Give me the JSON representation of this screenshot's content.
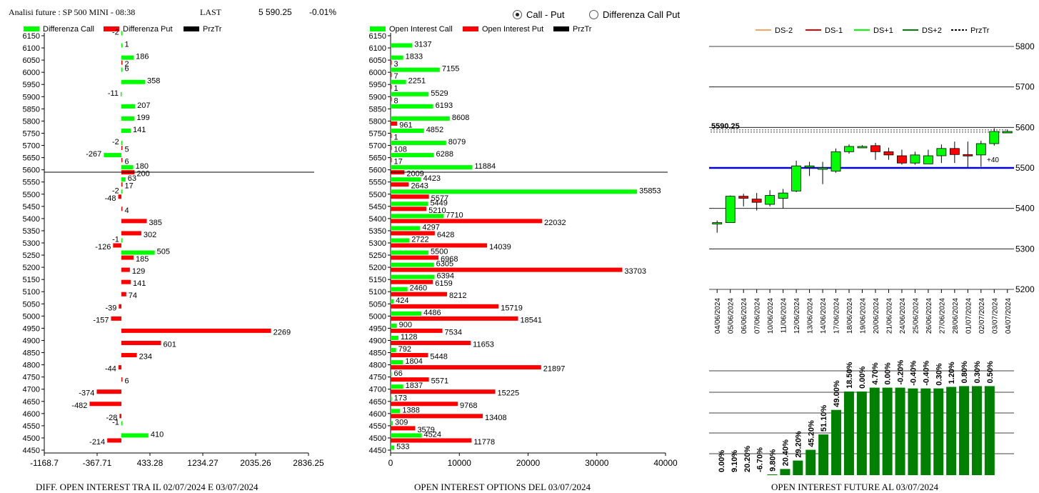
{
  "header": {
    "title": "Analisi future : SP 500 MINI - 08:38",
    "last_label": "LAST",
    "last_value": "5 590.25",
    "change": "-0.01%"
  },
  "radios": {
    "call_put": "Call - Put",
    "diff_call_put": "Differenza Call Put",
    "selected": "call_put"
  },
  "footers": {
    "left": "DIFF. OPEN INTEREST TRA IL 02/07/2024 E 03/07/2024",
    "middle": "OPEN INTEREST OPTIONS DEL 03/07/2024",
    "right": "OPEN INTEREST FUTURE AL 03/07/2024"
  },
  "colors": {
    "green": "#00ff00",
    "red": "#ff0000",
    "black": "#000000",
    "blue": "#0000cc",
    "darkgreen": "#008000",
    "orange": "#f4a460",
    "darkred": "#dd0000"
  },
  "chart_data": [
    {
      "id": "diff",
      "type": "bar",
      "orientation": "horizontal",
      "legend": [
        "Differenza Call",
        "Differenza Put",
        "PrzTr"
      ],
      "strikes": [
        6150,
        6100,
        6050,
        6000,
        5950,
        5900,
        5850,
        5800,
        5750,
        5700,
        5650,
        5600,
        5550,
        5500,
        5450,
        5400,
        5350,
        5300,
        5250,
        5200,
        5150,
        5100,
        5050,
        5000,
        4950,
        4900,
        4850,
        4800,
        4750,
        4700,
        4650,
        4600,
        4550,
        4500,
        4450
      ],
      "call": [
        -2,
        1,
        186,
        6,
        358,
        -11,
        207,
        199,
        141,
        -2,
        -267,
        180,
        63,
        -2,
        null,
        null,
        null,
        -1,
        505,
        null,
        null,
        null,
        null,
        null,
        null,
        null,
        null,
        null,
        null,
        null,
        null,
        null,
        -1,
        410,
        null
      ],
      "put": [
        null,
        null,
        2,
        null,
        null,
        null,
        null,
        null,
        null,
        5,
        6,
        200,
        17,
        -48,
        4,
        385,
        302,
        -126,
        185,
        129,
        141,
        74,
        -39,
        -157,
        2269,
        601,
        234,
        -44,
        6,
        -374,
        -482,
        -28,
        null,
        -214,
        null
      ],
      "call_row_offset": [
        0,
        0,
        0,
        0,
        0,
        0,
        0,
        0,
        0,
        0,
        0,
        0,
        0,
        0,
        0,
        0,
        0,
        0,
        0,
        0,
        0,
        0,
        0,
        0,
        0,
        0,
        0,
        0,
        0,
        0,
        0,
        0,
        0,
        0,
        0
      ],
      "xticks": [
        "-1168.7",
        "-367.71",
        "433.28",
        "1234.27",
        "2035.26",
        "2836.25"
      ],
      "xlim": [
        -1168.7,
        2836.25
      ],
      "price_line": 5590.25
    },
    {
      "id": "oi",
      "type": "bar",
      "orientation": "horizontal",
      "legend": [
        "Open Interest Call",
        "Open Interest Put",
        "PrzTr"
      ],
      "strikes": [
        6150,
        6100,
        6050,
        6000,
        5950,
        5900,
        5850,
        5800,
        5750,
        5700,
        5650,
        5600,
        5550,
        5500,
        5450,
        5400,
        5350,
        5300,
        5250,
        5200,
        5150,
        5100,
        5050,
        5000,
        4950,
        4900,
        4850,
        4800,
        4750,
        4700,
        4650,
        4600,
        4550,
        4500,
        4450
      ],
      "call": [
        null,
        3137,
        1833,
        7155,
        2251,
        5529,
        6193,
        8608,
        4852,
        8079,
        6288,
        11884,
        4423,
        35853,
        5449,
        7710,
        4297,
        2722,
        5500,
        6305,
        6394,
        2460,
        424,
        4486,
        900,
        1128,
        792,
        1804,
        66,
        1837,
        173,
        1388,
        309,
        4524,
        533
      ],
      "put": [
        null,
        null,
        3,
        7,
        1,
        8,
        null,
        961,
        1,
        108,
        17,
        2009,
        2643,
        5577,
        5210,
        22032,
        6428,
        14039,
        6968,
        33703,
        6159,
        8212,
        15719,
        18541,
        7534,
        11653,
        5448,
        21897,
        5571,
        15225,
        9768,
        13408,
        3579,
        11778,
        null
      ],
      "xticks": [
        "0",
        "10000",
        "20000",
        "30000",
        "40000"
      ],
      "xlim": [
        0,
        40000
      ],
      "price_line": 5590.25
    },
    {
      "id": "candles",
      "type": "candlestick",
      "legend": [
        "DS-2",
        "DS-1",
        "DS+1",
        "DS+2",
        "PrzTr"
      ],
      "dates": [
        "04/06/2024",
        "05/06/2024",
        "06/06/2024",
        "07/06/2024",
        "10/06/2024",
        "11/06/2024",
        "12/06/2024",
        "13/06/2024",
        "14/06/2024",
        "17/06/2024",
        "18/06/2024",
        "19/06/2024",
        "20/06/2024",
        "21/06/2024",
        "24/06/2024",
        "25/06/2024",
        "26/06/2024",
        "27/06/2024",
        "28/06/2024",
        "01/07/2024",
        "02/07/2024",
        "03/07/2024",
        "04/07/2024"
      ],
      "open": [
        5362,
        5365,
        5430,
        5423,
        5410,
        5425,
        5443,
        5505,
        5500,
        5492,
        5540,
        5553,
        5555,
        5540,
        5530,
        5512,
        5510,
        5530,
        5548,
        5533,
        5532,
        5560,
        5590
      ],
      "close": [
        5365,
        5430,
        5425,
        5415,
        5432,
        5438,
        5505,
        5505,
        5500,
        5540,
        5553,
        5553,
        5540,
        5532,
        5512,
        5532,
        5530,
        5548,
        5533,
        5532,
        5560,
        5590,
        5590
      ],
      "high": [
        5370,
        5432,
        5436,
        5438,
        5445,
        5448,
        5518,
        5515,
        5515,
        5548,
        5558,
        5556,
        5562,
        5550,
        5545,
        5540,
        5545,
        5558,
        5565,
        5565,
        5567,
        5598,
        5595
      ],
      "low": [
        5340,
        5365,
        5405,
        5395,
        5405,
        5400,
        5440,
        5480,
        5460,
        5488,
        5535,
        5550,
        5520,
        5520,
        5508,
        5508,
        5512,
        5512,
        5512,
        5500,
        5503,
        5555,
        5588
      ],
      "yticks": [
        "5800",
        "5700",
        "5600",
        "5500",
        "5400",
        "5300",
        "5200"
      ],
      "ylim": [
        5200,
        5800
      ],
      "last_label": "5590.25",
      "last_price": 5590.25,
      "level_line": 5500,
      "level_label": "+40"
    },
    {
      "id": "future_oi",
      "type": "bar",
      "categories": [
        "04/06/2024",
        "05/06/2024",
        "06/06/2024",
        "07/06/2024",
        "10/06/2024",
        "11/06/2024",
        "12/06/2024",
        "13/06/2024",
        "14/06/2024",
        "17/06/2024",
        "18/06/2024",
        "19/06/2024",
        "20/06/2024",
        "21/06/2024",
        "24/06/2024",
        "25/06/2024",
        "26/06/2024",
        "27/06/2024",
        "28/06/2024",
        "01/07/2024",
        "02/07/2024",
        "03/07/2024"
      ],
      "values": [
        0,
        0,
        0,
        0,
        1,
        8,
        19,
        33,
        53,
        85,
        109,
        109,
        114,
        114,
        114,
        113,
        113,
        113,
        115,
        116,
        116,
        116
      ],
      "pct_labels": [
        "0.00%",
        "9.10%",
        "20.20%",
        "-6.70%",
        "9.80%",
        "20.40%",
        "29.20%",
        "45.20%",
        "51.10%",
        "49.00%",
        "18.50%",
        "0.00%",
        "4.70%",
        "0.00%",
        "-0.20%",
        "-0.40%",
        "-0.40%",
        "0.30%",
        "1.20%",
        "0.80%",
        "0.30%",
        "0.50%"
      ],
      "ylim": [
        0,
        135
      ]
    }
  ]
}
